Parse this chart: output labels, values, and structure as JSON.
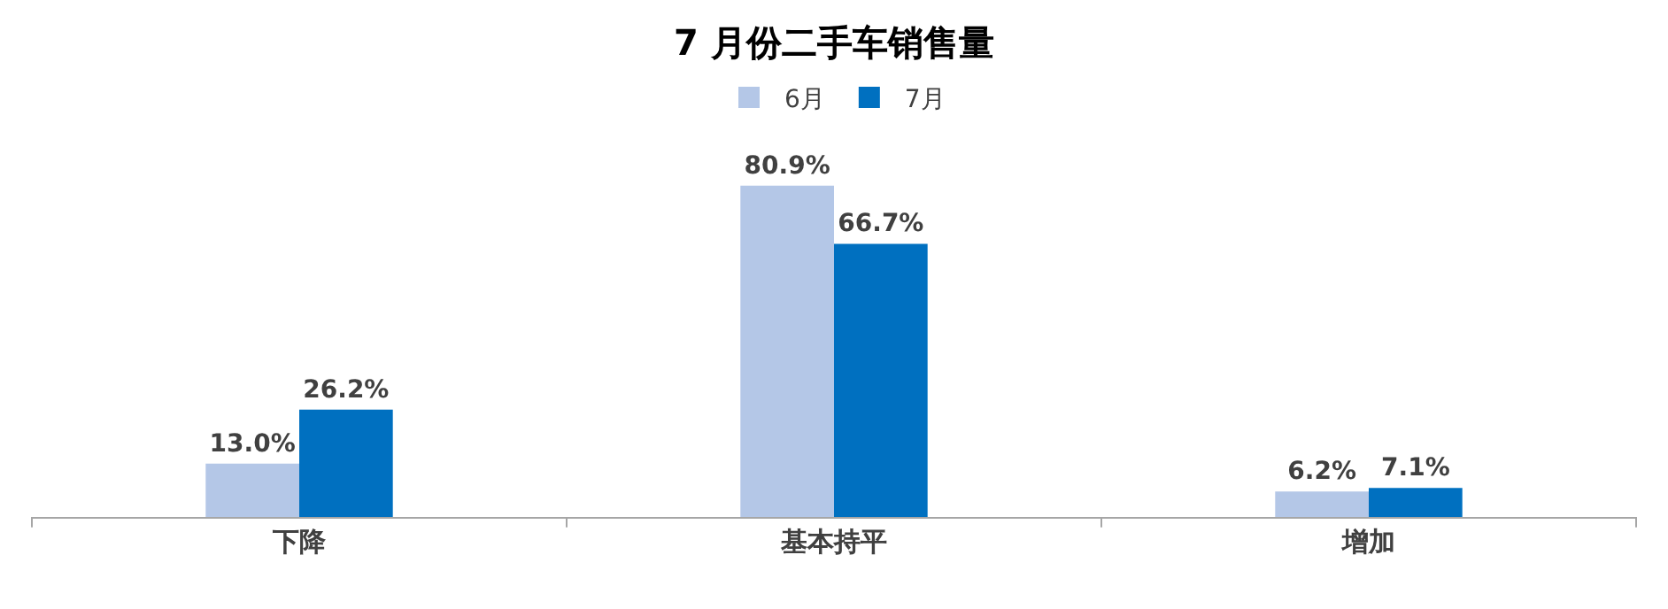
{
  "chart_data": {
    "type": "bar",
    "title": "7 月份二手车销售量",
    "categories": [
      "下降",
      "基本持平",
      "增加"
    ],
    "series": [
      {
        "name": "6月",
        "color": "#b4c7e7",
        "values": [
          13.0,
          80.9,
          6.2
        ],
        "value_labels": [
          "13.0%",
          "80.9%",
          "6.2%"
        ]
      },
      {
        "name": "7月",
        "color": "#0070c0",
        "values": [
          26.2,
          66.7,
          7.1
        ],
        "value_labels": [
          "26.2%",
          "66.7%",
          "7.1%"
        ]
      }
    ],
    "legend": "top"
  }
}
